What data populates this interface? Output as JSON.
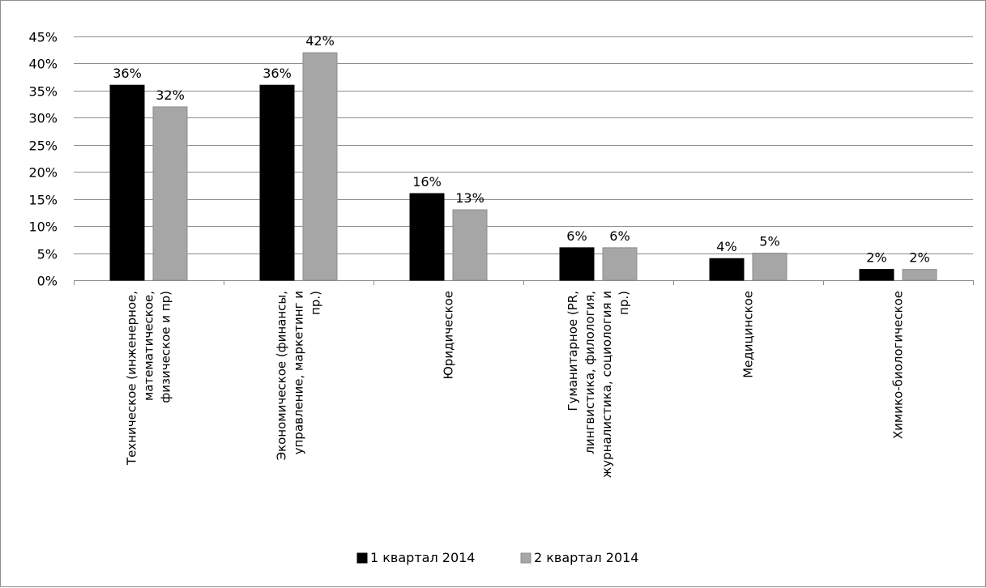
{
  "chart_data": {
    "type": "bar",
    "categories": [
      [
        "Техническое (инженерное,",
        "математическое,",
        "физическое и пр)"
      ],
      [
        "Экономическое (финансы,",
        "управление, маркетинг и",
        "пр.)"
      ],
      [
        "Юридическое"
      ],
      [
        "Гуманитарное (PR,",
        "лингвистика, филология,",
        "журналистика, социология и",
        "пр.)"
      ],
      [
        "Медицинское"
      ],
      [
        "Химико-биологическое"
      ]
    ],
    "series": [
      {
        "name": "1 квартал 2014",
        "color": "#000000",
        "values": [
          36,
          36,
          16,
          6,
          4,
          2
        ],
        "labels": [
          "36%",
          "36%",
          "16%",
          "6%",
          "4%",
          "2%"
        ]
      },
      {
        "name": "2 квартал 2014",
        "color": "#a6a6a6",
        "values": [
          32,
          42,
          13,
          6,
          5,
          2
        ],
        "labels": [
          "32%",
          "42%",
          "13%",
          "6%",
          "5%",
          "2%"
        ]
      }
    ],
    "ylim": [
      0,
      45
    ],
    "yticks": [
      0,
      5,
      10,
      15,
      20,
      25,
      30,
      35,
      40,
      45
    ],
    "ytick_labels": [
      "0%",
      "5%",
      "10%",
      "15%",
      "20%",
      "25%",
      "30%",
      "35%",
      "40%",
      "45%"
    ],
    "grid": true,
    "legend_position": "bottom",
    "title": "",
    "xlabel": "",
    "ylabel": ""
  }
}
